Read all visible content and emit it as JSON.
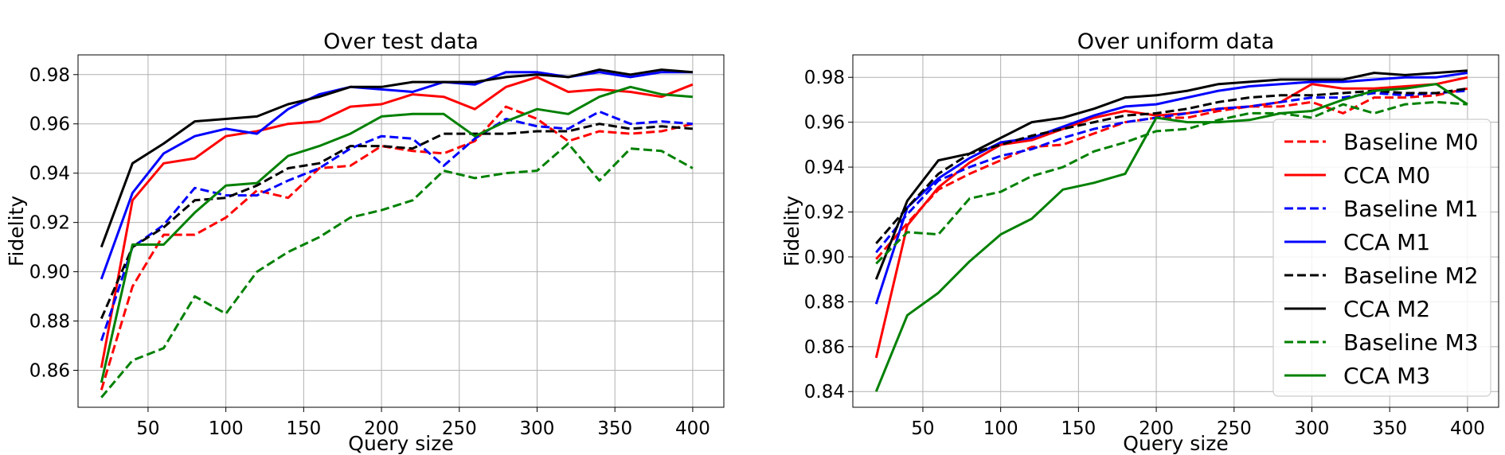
{
  "chart_data": [
    {
      "type": "line",
      "title": "Over test data",
      "xlabel": "Query size",
      "ylabel": "Fidelity",
      "xlim": [
        5,
        420
      ],
      "ylim": [
        0.845,
        0.988
      ],
      "x_ticks": [
        50,
        100,
        150,
        200,
        250,
        300,
        350,
        400
      ],
      "y_ticks": [
        0.86,
        0.88,
        0.9,
        0.92,
        0.94,
        0.96,
        0.98
      ],
      "y_tick_labels": [
        "0.86",
        "0.88",
        "0.90",
        "0.92",
        "0.94",
        "0.96",
        "0.98"
      ],
      "grid": true,
      "x": [
        20,
        40,
        60,
        80,
        100,
        120,
        140,
        160,
        180,
        200,
        220,
        240,
        260,
        280,
        300,
        320,
        340,
        360,
        380,
        400
      ],
      "series": [
        {
          "name": "Baseline M0",
          "color": "#ff0000",
          "dashed": true,
          "values": [
            0.852,
            0.894,
            0.915,
            0.915,
            0.922,
            0.933,
            0.93,
            0.942,
            0.943,
            0.951,
            0.949,
            0.948,
            0.953,
            0.967,
            0.962,
            0.953,
            0.957,
            0.956,
            0.957,
            0.96
          ]
        },
        {
          "name": "CCA M0",
          "color": "#ff0000",
          "dashed": false,
          "values": [
            0.861,
            0.929,
            0.944,
            0.946,
            0.955,
            0.957,
            0.96,
            0.961,
            0.967,
            0.968,
            0.972,
            0.971,
            0.966,
            0.975,
            0.979,
            0.973,
            0.974,
            0.973,
            0.971,
            0.976
          ]
        },
        {
          "name": "Baseline M1",
          "color": "#0000ff",
          "dashed": true,
          "values": [
            0.872,
            0.91,
            0.919,
            0.934,
            0.931,
            0.931,
            0.937,
            0.942,
            0.95,
            0.955,
            0.954,
            0.943,
            0.954,
            0.962,
            0.959,
            0.958,
            0.965,
            0.96,
            0.961,
            0.96
          ]
        },
        {
          "name": "CCA M1",
          "color": "#0000ff",
          "dashed": false,
          "values": [
            0.897,
            0.932,
            0.948,
            0.955,
            0.958,
            0.956,
            0.966,
            0.972,
            0.975,
            0.974,
            0.973,
            0.977,
            0.976,
            0.981,
            0.981,
            0.979,
            0.981,
            0.979,
            0.981,
            0.981
          ]
        },
        {
          "name": "Baseline M2",
          "color": "#000000",
          "dashed": true,
          "values": [
            0.881,
            0.91,
            0.918,
            0.929,
            0.93,
            0.935,
            0.942,
            0.944,
            0.951,
            0.951,
            0.95,
            0.956,
            0.956,
            0.956,
            0.957,
            0.957,
            0.96,
            0.958,
            0.959,
            0.958
          ]
        },
        {
          "name": "CCA M2",
          "color": "#000000",
          "dashed": false,
          "values": [
            0.91,
            0.944,
            0.952,
            0.961,
            0.962,
            0.963,
            0.968,
            0.971,
            0.975,
            0.975,
            0.977,
            0.977,
            0.977,
            0.979,
            0.98,
            0.979,
            0.982,
            0.98,
            0.982,
            0.981
          ]
        },
        {
          "name": "Baseline M3",
          "color": "#008000",
          "dashed": true,
          "values": [
            0.849,
            0.864,
            0.869,
            0.89,
            0.883,
            0.9,
            0.908,
            0.914,
            0.922,
            0.925,
            0.929,
            0.941,
            0.938,
            0.94,
            0.941,
            0.952,
            0.937,
            0.95,
            0.949,
            0.942
          ]
        },
        {
          "name": "CCA M3",
          "color": "#008000",
          "dashed": false,
          "values": [
            0.855,
            0.911,
            0.911,
            0.924,
            0.935,
            0.936,
            0.947,
            0.951,
            0.956,
            0.963,
            0.964,
            0.964,
            0.955,
            0.961,
            0.966,
            0.964,
            0.971,
            0.975,
            0.972,
            0.971
          ]
        }
      ]
    },
    {
      "type": "line",
      "title": "Over uniform data",
      "xlabel": "Query size",
      "ylabel": "Fidelity",
      "xlim": [
        5,
        420
      ],
      "ylim": [
        0.833,
        0.99
      ],
      "x_ticks": [
        50,
        100,
        150,
        200,
        250,
        300,
        350,
        400
      ],
      "y_ticks": [
        0.84,
        0.86,
        0.88,
        0.9,
        0.92,
        0.94,
        0.96,
        0.98
      ],
      "y_tick_labels": [
        "0.84",
        "0.86",
        "0.88",
        "0.90",
        "0.92",
        "0.94",
        "0.96",
        "0.98"
      ],
      "grid": true,
      "legend_position": "right",
      "x": [
        20,
        40,
        60,
        80,
        100,
        120,
        140,
        160,
        180,
        200,
        220,
        240,
        260,
        280,
        300,
        320,
        340,
        360,
        380,
        400
      ],
      "series": [
        {
          "name": "Baseline M0",
          "color": "#ff0000",
          "dashed": true,
          "values": [
            0.899,
            0.915,
            0.93,
            0.937,
            0.943,
            0.949,
            0.95,
            0.955,
            0.96,
            0.962,
            0.962,
            0.965,
            0.967,
            0.967,
            0.969,
            0.964,
            0.971,
            0.971,
            0.972,
            0.975
          ]
        },
        {
          "name": "CCA M0",
          "color": "#ff0000",
          "dashed": false,
          "values": [
            0.855,
            0.914,
            0.931,
            0.942,
            0.95,
            0.952,
            0.957,
            0.962,
            0.965,
            0.963,
            0.964,
            0.966,
            0.967,
            0.969,
            0.977,
            0.975,
            0.975,
            0.976,
            0.977,
            0.98
          ]
        },
        {
          "name": "Baseline M1",
          "color": "#0000ff",
          "dashed": true,
          "values": [
            0.902,
            0.919,
            0.934,
            0.94,
            0.945,
            0.948,
            0.953,
            0.957,
            0.96,
            0.962,
            0.964,
            0.966,
            0.967,
            0.969,
            0.971,
            0.971,
            0.973,
            0.972,
            0.973,
            0.974
          ]
        },
        {
          "name": "CCA M1",
          "color": "#0000ff",
          "dashed": false,
          "values": [
            0.879,
            0.922,
            0.935,
            0.944,
            0.951,
            0.953,
            0.958,
            0.963,
            0.967,
            0.968,
            0.971,
            0.974,
            0.976,
            0.977,
            0.978,
            0.978,
            0.979,
            0.98,
            0.98,
            0.982
          ]
        },
        {
          "name": "Baseline M2",
          "color": "#000000",
          "dashed": true,
          "values": [
            0.906,
            0.922,
            0.937,
            0.946,
            0.95,
            0.954,
            0.957,
            0.96,
            0.963,
            0.964,
            0.966,
            0.969,
            0.971,
            0.972,
            0.972,
            0.973,
            0.974,
            0.973,
            0.973,
            0.975
          ]
        },
        {
          "name": "CCA M2",
          "color": "#000000",
          "dashed": false,
          "values": [
            0.89,
            0.925,
            0.943,
            0.946,
            0.953,
            0.96,
            0.962,
            0.966,
            0.971,
            0.972,
            0.974,
            0.977,
            0.978,
            0.979,
            0.979,
            0.979,
            0.982,
            0.981,
            0.982,
            0.983
          ]
        },
        {
          "name": "Baseline M3",
          "color": "#008000",
          "dashed": true,
          "values": [
            0.897,
            0.911,
            0.91,
            0.926,
            0.929,
            0.936,
            0.94,
            0.947,
            0.951,
            0.956,
            0.957,
            0.961,
            0.964,
            0.964,
            0.962,
            0.968,
            0.964,
            0.968,
            0.969,
            0.968
          ]
        },
        {
          "name": "CCA M3",
          "color": "#008000",
          "dashed": false,
          "values": [
            0.84,
            0.874,
            0.884,
            0.898,
            0.91,
            0.917,
            0.93,
            0.933,
            0.937,
            0.962,
            0.96,
            0.96,
            0.961,
            0.964,
            0.965,
            0.97,
            0.974,
            0.975,
            0.977,
            0.968
          ]
        }
      ]
    }
  ]
}
